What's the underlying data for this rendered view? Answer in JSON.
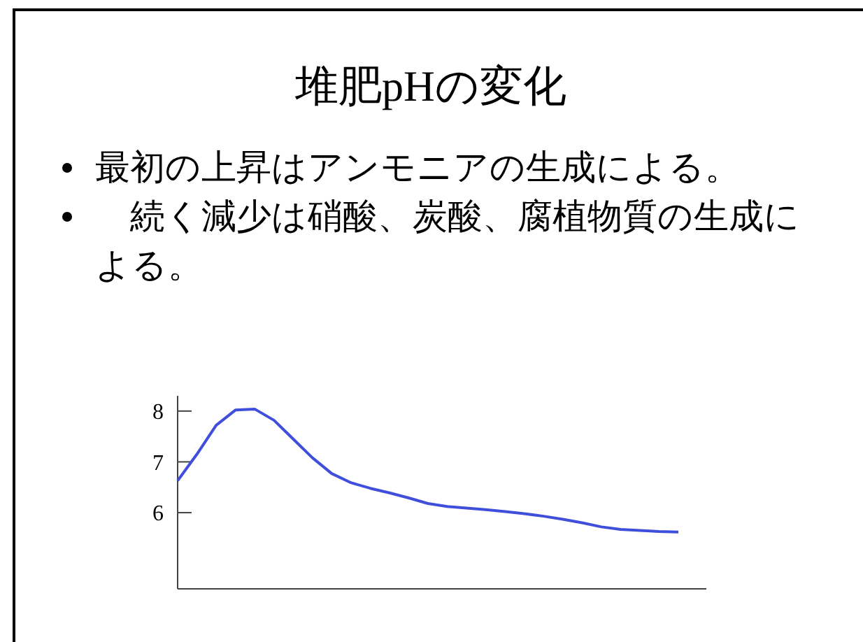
{
  "chart_data": {
    "type": "line",
    "title": "堆肥pHの変化",
    "annotations": [
      "最初の上昇はアンモニアの生成による。",
      "　続く減少は硝酸、炭酸、腐植物質の生成による。"
    ],
    "categories": [
      null,
      null,
      null,
      null,
      null,
      null,
      null,
      null,
      null,
      null,
      null,
      null,
      null,
      null,
      null,
      null,
      null,
      null,
      null,
      null,
      null,
      null,
      null,
      null,
      null,
      null,
      null
    ],
    "series": [
      {
        "color": "#3f4fdc",
        "values": [
          6.63,
          7.15,
          7.72,
          8.02,
          8.04,
          7.82,
          7.45,
          7.08,
          6.77,
          6.59,
          6.48,
          6.39,
          6.29,
          6.18,
          6.12,
          6.09,
          6.06,
          6.02,
          5.98,
          5.93,
          5.87,
          5.8,
          5.72,
          5.67,
          5.65,
          5.63,
          5.62
        ]
      }
    ],
    "ylim": [
      4.5,
      8.3
    ],
    "yticks": [
      6,
      7,
      8
    ],
    "tick_labels": "y",
    "grid": false,
    "marker": "none",
    "line_style": "solid"
  }
}
